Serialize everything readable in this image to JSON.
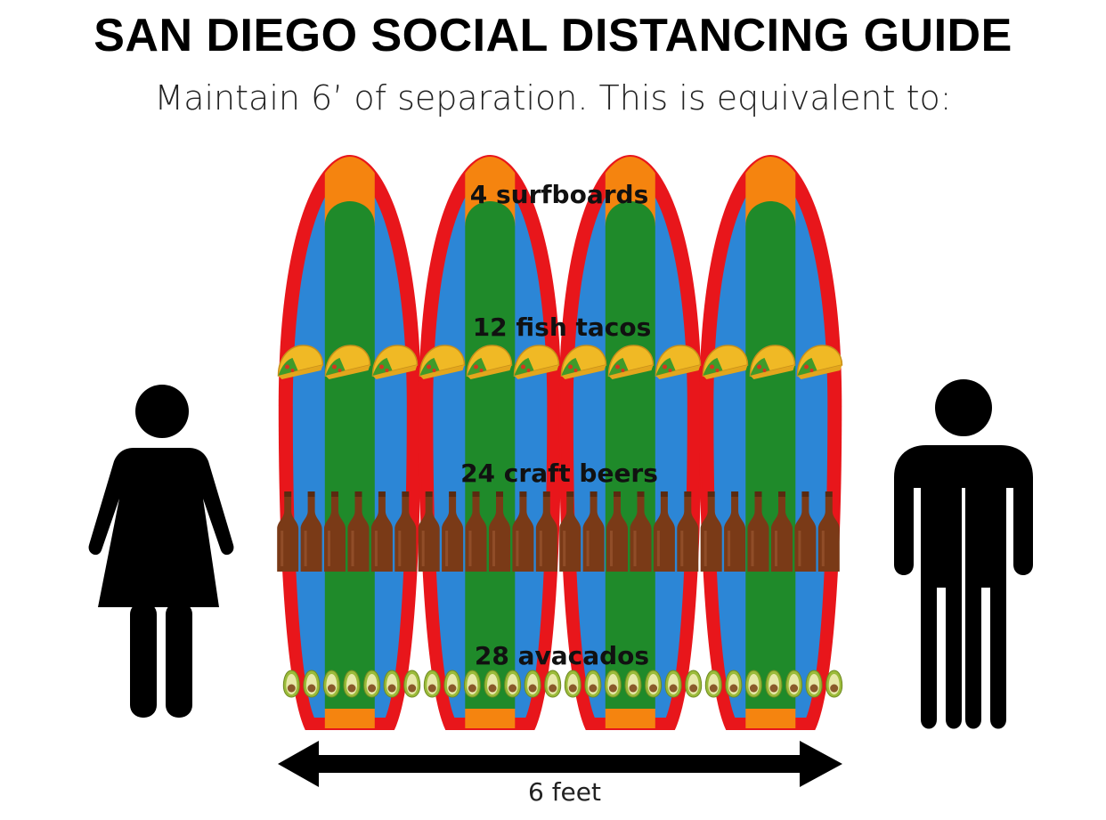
{
  "header": {
    "title": "SAN DIEGO SOCIAL DISTANCING GUIDE",
    "subtitle": "Maintain 6’ of separation.  This is equivalent to:"
  },
  "rows": [
    {
      "id": "surfboards",
      "label": "4 surfboards",
      "count": 4,
      "icon": "surfboard-icon"
    },
    {
      "id": "tacos",
      "label": "12 fish tacos",
      "count": 12,
      "icon": "taco-icon"
    },
    {
      "id": "beers",
      "label": "24 craft beers",
      "count": 24,
      "icon": "beer-bottle-icon"
    },
    {
      "id": "avocados",
      "label": "28 avacados",
      "count": 28,
      "icon": "avocado-icon"
    }
  ],
  "people": {
    "left": {
      "icon": "woman-icon"
    },
    "right": {
      "icon": "man-icon"
    }
  },
  "distance": {
    "label": "6 feet",
    "icon": "double-arrow-icon"
  },
  "colors": {
    "board_outline": "#e8161b",
    "board_tip": "#f5840f",
    "board_blue": "#2c86d6",
    "board_stripe": "#1f8a2a",
    "taco_shell": "#f0b925",
    "beer_bottle": "#7a3a17",
    "avocado_skin": "#9bbb3a",
    "avocado_flesh": "#e7e9a8",
    "avocado_pit": "#8a5a2b",
    "silhouette": "#000000"
  }
}
